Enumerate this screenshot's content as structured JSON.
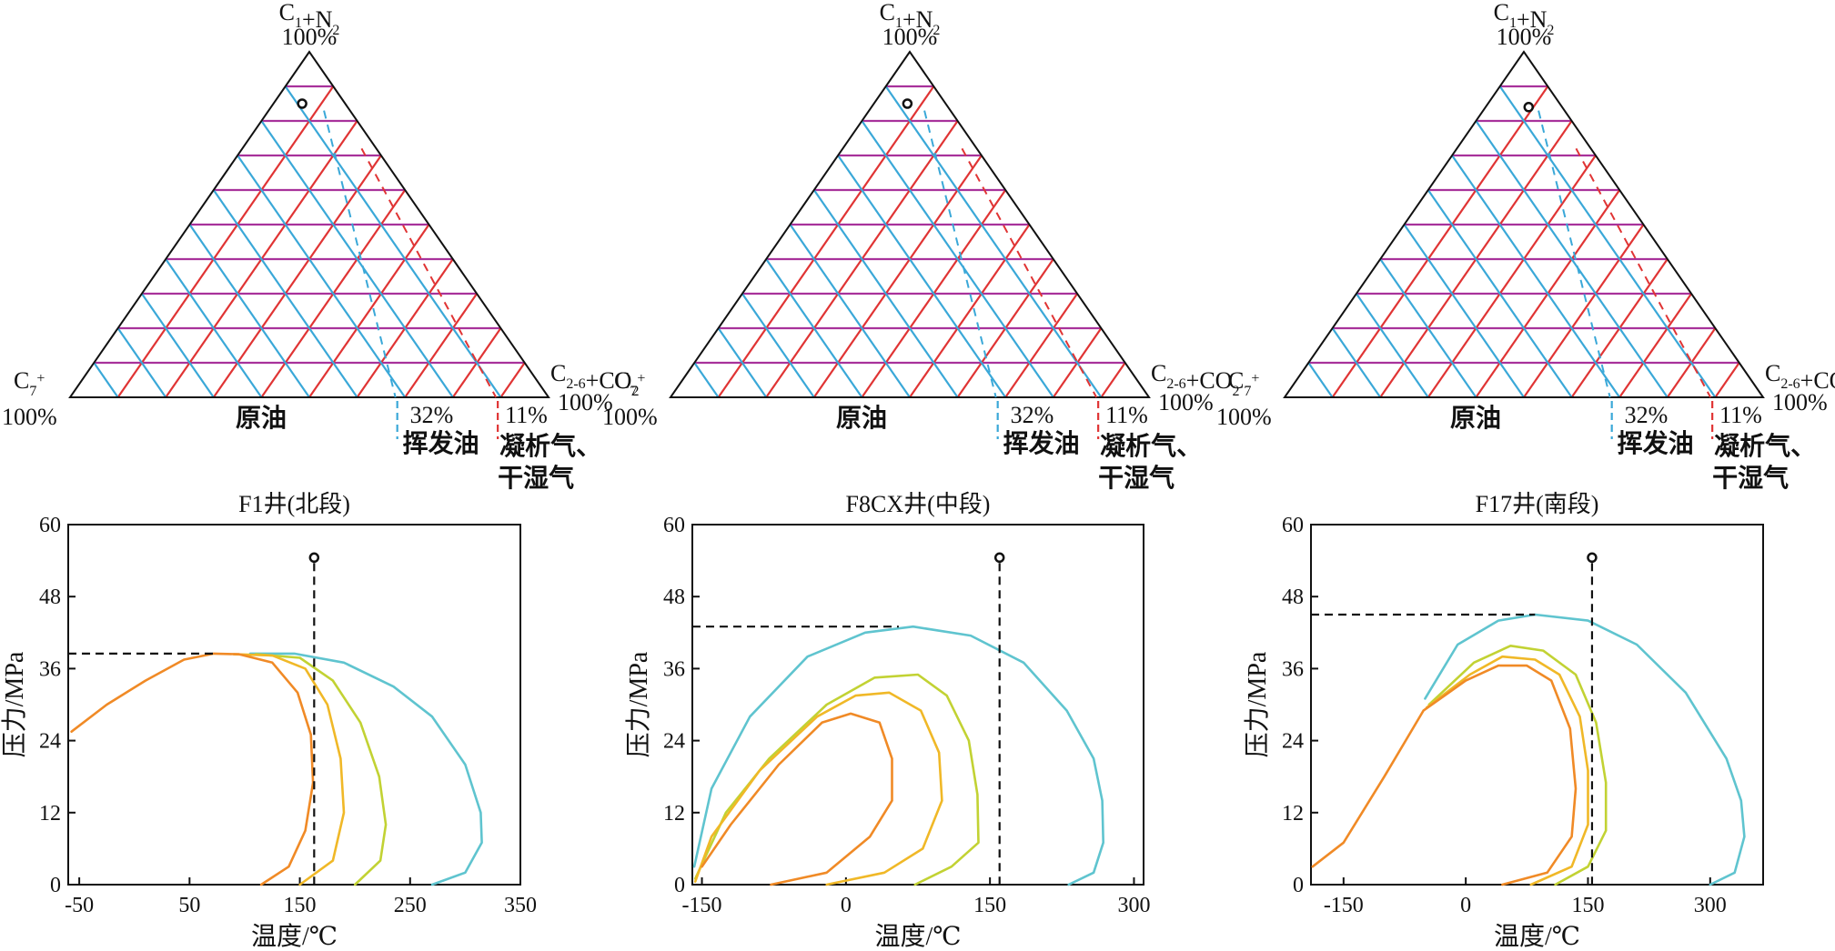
{
  "colors": {
    "grid_purple": "#a8329b",
    "grid_red": "#e03434",
    "grid_blue": "#3aa8d8",
    "dash_blue": "#3aa8d8",
    "dash_red": "#e03434",
    "series": [
      "#5fc4cf",
      "#c2d233",
      "#f0b827",
      "#f08a26"
    ]
  },
  "ternary": {
    "top_label_main": "C",
    "top_label_sub": "1",
    "top_label_plus": "+N",
    "top_label_sub2": "2",
    "top_pct": "100%",
    "right_label_main": "C",
    "right_label_sub": "2-6",
    "right_label_plus": "+CO",
    "right_label_sub2": "2",
    "right_pct": "100%",
    "left_label_main": "C",
    "left_label_sub": "7",
    "left_label_sup": "+",
    "left_pct": "100%",
    "crude_oil": "原油",
    "volatile_oil": "挥发油",
    "condensate_gas_1": "凝析气、",
    "condensate_gas_2": "干湿气",
    "pct_32": "32%",
    "pct_11": "11%",
    "boundaries": [
      32,
      11
    ]
  },
  "axes_common": {
    "ylabel": "压力/MPa",
    "xlabel": "温度/℃",
    "yticks": [
      0,
      12,
      24,
      36,
      48,
      60
    ]
  },
  "chart_data": [
    {
      "type": "line",
      "title": "F1井(北段)",
      "xlabel": "温度/℃",
      "ylabel": "压力/MPa",
      "xlim": [
        -60,
        350
      ],
      "ylim": [
        0,
        60
      ],
      "xticks": [
        -50,
        50,
        150,
        250,
        350
      ],
      "yticks": [
        0,
        12,
        24,
        36,
        48,
        60
      ],
      "composition_point": {
        "C1_N2": 85,
        "C2_6_CO2": 6,
        "C7": 9
      },
      "reservoir_point": {
        "x": 163,
        "y": 54.5
      },
      "cricondenbar": {
        "x": 72,
        "y": 38.5
      },
      "series": [
        {
          "values": [
            [
              270,
              0
            ],
            [
              300,
              2
            ],
            [
              315,
              7
            ],
            [
              314,
              12
            ],
            [
              300,
              20
            ],
            [
              270,
              28
            ],
            [
              235,
              33
            ],
            [
              190,
              37
            ],
            [
              145,
              38.5
            ],
            [
              105,
              38.5
            ]
          ]
        },
        {
          "values": [
            [
              200,
              0
            ],
            [
              223,
              4
            ],
            [
              228,
              10
            ],
            [
              222,
              18
            ],
            [
              205,
              27
            ],
            [
              180,
              34
            ],
            [
              150,
              37.8
            ],
            [
              110,
              38.4
            ]
          ]
        },
        {
          "values": [
            [
              150,
              0
            ],
            [
              180,
              4
            ],
            [
              190,
              12
            ],
            [
              187,
              21
            ],
            [
              175,
              30
            ],
            [
              155,
              36
            ],
            [
              125,
              38.2
            ],
            [
              90,
              38.4
            ]
          ]
        },
        {
          "values": [
            [
              115,
              0
            ],
            [
              140,
              3
            ],
            [
              155,
              9
            ],
            [
              162,
              17
            ],
            [
              160,
              25
            ],
            [
              148,
              32
            ],
            [
              125,
              37
            ],
            [
              95,
              38.4
            ],
            [
              72,
              38.5
            ],
            [
              45,
              37.5
            ],
            [
              10,
              34
            ],
            [
              -25,
              30
            ],
            [
              -57,
              25.5
            ]
          ]
        }
      ]
    },
    {
      "type": "line",
      "title": "F8CX井(中段)",
      "xlabel": "温度/℃",
      "ylabel": "压力/MPa",
      "xlim": [
        -160,
        310
      ],
      "ylim": [
        0,
        60
      ],
      "xticks": [
        -150,
        0,
        150,
        300
      ],
      "yticks": [
        0,
        12,
        24,
        36,
        48,
        60
      ],
      "composition_point": {
        "C1_N2": 85,
        "C2_6_CO2": 7,
        "C7": 8
      },
      "reservoir_point": {
        "x": 160,
        "y": 54.5
      },
      "cricondenbar": {
        "x": 55,
        "y": 43
      },
      "series": [
        {
          "values": [
            [
              232,
              0
            ],
            [
              258,
              2
            ],
            [
              268,
              7
            ],
            [
              267,
              14
            ],
            [
              258,
              21
            ],
            [
              230,
              29
            ],
            [
              185,
              37
            ],
            [
              130,
              41.5
            ],
            [
              70,
              43
            ],
            [
              20,
              42
            ],
            [
              -40,
              38
            ],
            [
              -100,
              28
            ],
            [
              -140,
              16
            ],
            [
              -158,
              3
            ]
          ]
        },
        {
          "values": [
            [
              72,
              0
            ],
            [
              110,
              3
            ],
            [
              138,
              7
            ],
            [
              137,
              15
            ],
            [
              128,
              24
            ],
            [
              105,
              31.5
            ],
            [
              75,
              35
            ],
            [
              30,
              34.5
            ],
            [
              -20,
              30
            ],
            [
              -80,
              21
            ],
            [
              -125,
              12
            ],
            [
              -157,
              1
            ]
          ]
        },
        {
          "values": [
            [
              -20,
              0
            ],
            [
              40,
              2
            ],
            [
              80,
              6
            ],
            [
              100,
              14
            ],
            [
              97,
              22
            ],
            [
              78,
              29
            ],
            [
              45,
              32
            ],
            [
              10,
              31.5
            ],
            [
              -30,
              28
            ],
            [
              -90,
              19
            ],
            [
              -140,
              8
            ],
            [
              -157,
              0.5
            ]
          ]
        },
        {
          "values": [
            [
              -78,
              0
            ],
            [
              -20,
              2
            ],
            [
              25,
              8
            ],
            [
              48,
              14
            ],
            [
              48,
              21
            ],
            [
              35,
              27
            ],
            [
              5,
              28.5
            ],
            [
              -25,
              27
            ],
            [
              -70,
              20
            ],
            [
              -120,
              10
            ],
            [
              -150,
              3
            ]
          ]
        }
      ]
    },
    {
      "type": "line",
      "title": "F17井(南段)",
      "xlabel": "温度/℃",
      "ylabel": "压力/MPa",
      "xlim": [
        -190,
        365
      ],
      "ylim": [
        0,
        60
      ],
      "xticks": [
        -150,
        0,
        150,
        300
      ],
      "yticks": [
        0,
        12,
        24,
        36,
        48,
        60
      ],
      "composition_point": {
        "C1_N2": 84,
        "C2_6_CO2": 9,
        "C7": 7
      },
      "reservoir_point": {
        "x": 155,
        "y": 54.5
      },
      "cricondenbar": {
        "x": 85,
        "y": 45
      },
      "series": [
        {
          "values": [
            [
              300,
              0
            ],
            [
              330,
              2
            ],
            [
              342,
              8
            ],
            [
              338,
              14
            ],
            [
              320,
              21
            ],
            [
              270,
              32
            ],
            [
              210,
              40
            ],
            [
              150,
              44
            ],
            [
              85,
              45
            ],
            [
              40,
              44
            ],
            [
              -10,
              40
            ],
            [
              -50,
              31
            ]
          ]
        },
        {
          "values": [
            [
              110,
              0
            ],
            [
              150,
              3
            ],
            [
              172,
              9
            ],
            [
              172,
              17
            ],
            [
              160,
              27
            ],
            [
              135,
              35
            ],
            [
              95,
              39
            ],
            [
              55,
              39.8
            ],
            [
              10,
              37
            ],
            [
              -45,
              30
            ]
          ]
        },
        {
          "values": [
            [
              80,
              0
            ],
            [
              130,
              3
            ],
            [
              150,
              10
            ],
            [
              150,
              19
            ],
            [
              140,
              28
            ],
            [
              115,
              35
            ],
            [
              85,
              37.5
            ],
            [
              45,
              38
            ],
            [
              5,
              35
            ],
            [
              -48,
              29.5
            ]
          ]
        },
        {
          "values": [
            [
              45,
              0
            ],
            [
              100,
              2
            ],
            [
              130,
              8
            ],
            [
              135,
              16
            ],
            [
              128,
              26
            ],
            [
              105,
              34
            ],
            [
              75,
              36.5
            ],
            [
              40,
              36.5
            ],
            [
              0,
              34
            ],
            [
              -52,
              29
            ],
            [
              -100,
              18
            ],
            [
              -150,
              7
            ],
            [
              -188,
              3
            ]
          ]
        }
      ]
    }
  ]
}
